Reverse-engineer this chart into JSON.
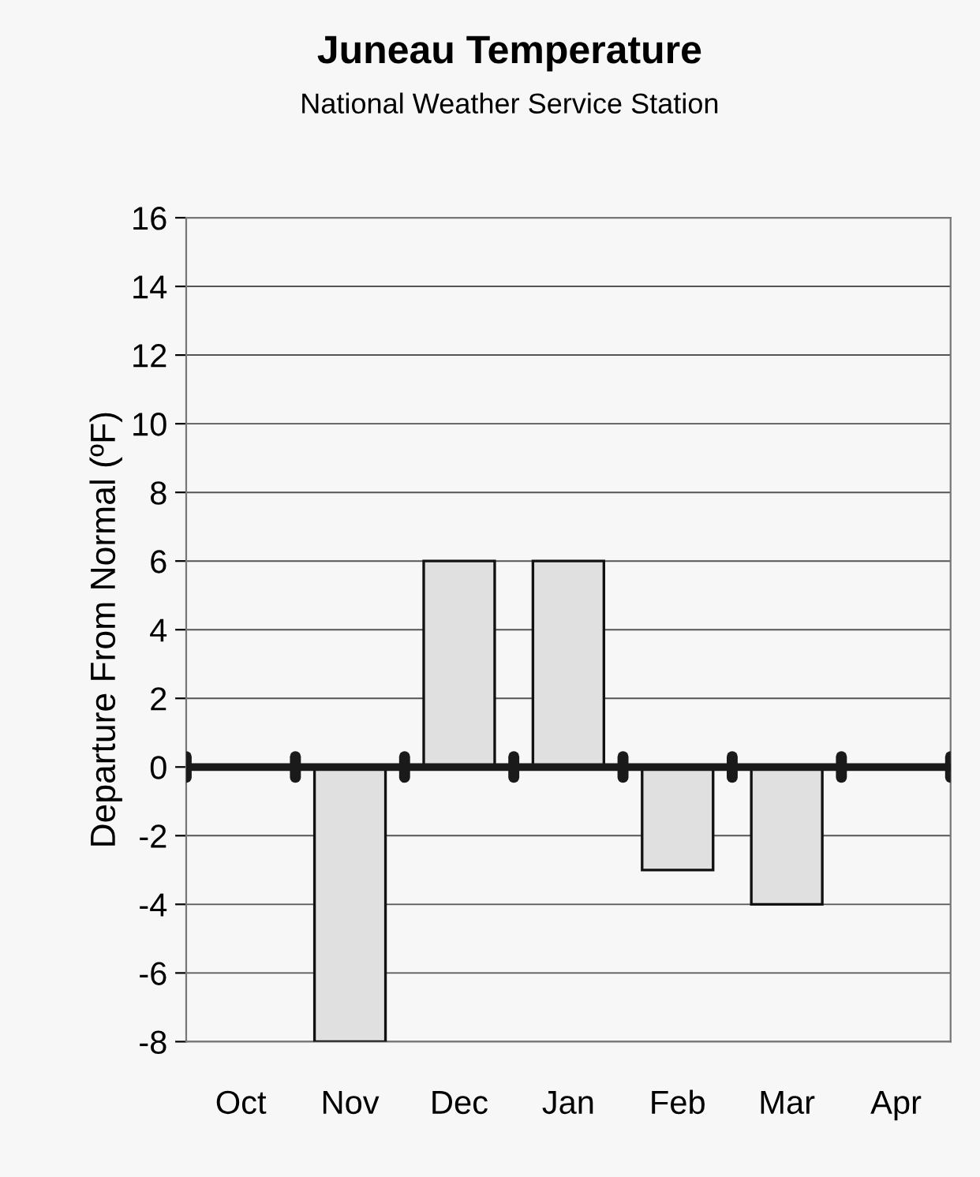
{
  "chart_data": {
    "type": "bar",
    "title": "Juneau Temperature",
    "subtitle": "National Weather Service Station",
    "ylabel": "Departure From Normal (ºF)",
    "categories": [
      "Oct",
      "Nov",
      "Dec",
      "Jan",
      "Feb",
      "Mar",
      "Apr"
    ],
    "values": [
      null,
      -8,
      6,
      6,
      -3,
      -4,
      null
    ],
    "color": "#e0e0e0",
    "ylim": [
      -8,
      16
    ],
    "yticks": [
      -8,
      -6,
      -4,
      -2,
      0,
      2,
      4,
      6,
      8,
      10,
      12,
      14,
      16
    ],
    "grid": "y",
    "ref_lines": [
      {
        "axis": "y",
        "value": 0,
        "color": "#1a1a1a"
      }
    ]
  }
}
